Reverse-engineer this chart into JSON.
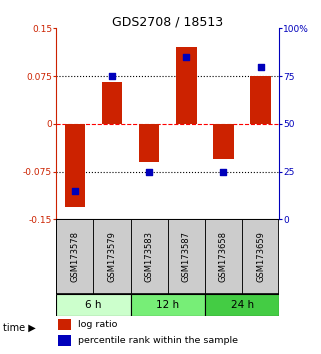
{
  "title": "GDS2708 / 18513",
  "samples": [
    "GSM173578",
    "GSM173579",
    "GSM173583",
    "GSM173587",
    "GSM173658",
    "GSM173659"
  ],
  "log_ratio": [
    -0.13,
    0.065,
    -0.06,
    0.12,
    -0.055,
    0.075
  ],
  "percentile_rank": [
    15,
    75,
    25,
    85,
    25,
    80
  ],
  "ylim_left": [
    -0.15,
    0.15
  ],
  "ylim_right": [
    0,
    100
  ],
  "yticks_left": [
    -0.15,
    -0.075,
    0,
    0.075,
    0.15
  ],
  "ytick_labels_left": [
    "-0.15",
    "-0.075",
    "0",
    "0.075",
    "0.15"
  ],
  "yticks_right": [
    0,
    25,
    50,
    75,
    100
  ],
  "ytick_labels_right": [
    "0",
    "25",
    "50",
    "75",
    "100%"
  ],
  "hlines": [
    -0.075,
    0,
    0.075
  ],
  "hline_styles": [
    "dotted",
    "dashed",
    "dotted"
  ],
  "hline_colors": [
    "black",
    "red",
    "black"
  ],
  "time_groups": [
    {
      "label": "6 h",
      "indices": [
        0,
        1
      ],
      "color": "#ccffcc"
    },
    {
      "label": "12 h",
      "indices": [
        2,
        3
      ],
      "color": "#77ee77"
    },
    {
      "label": "24 h",
      "indices": [
        4,
        5
      ],
      "color": "#44cc44"
    }
  ],
  "bar_color": "#cc2200",
  "dot_color": "#0000bb",
  "bar_width": 0.55,
  "dot_size": 22,
  "legend_red_label": "log ratio",
  "legend_blue_label": "percentile rank within the sample",
  "sample_box_color": "#cccccc",
  "sample_box_edge": "#333333"
}
